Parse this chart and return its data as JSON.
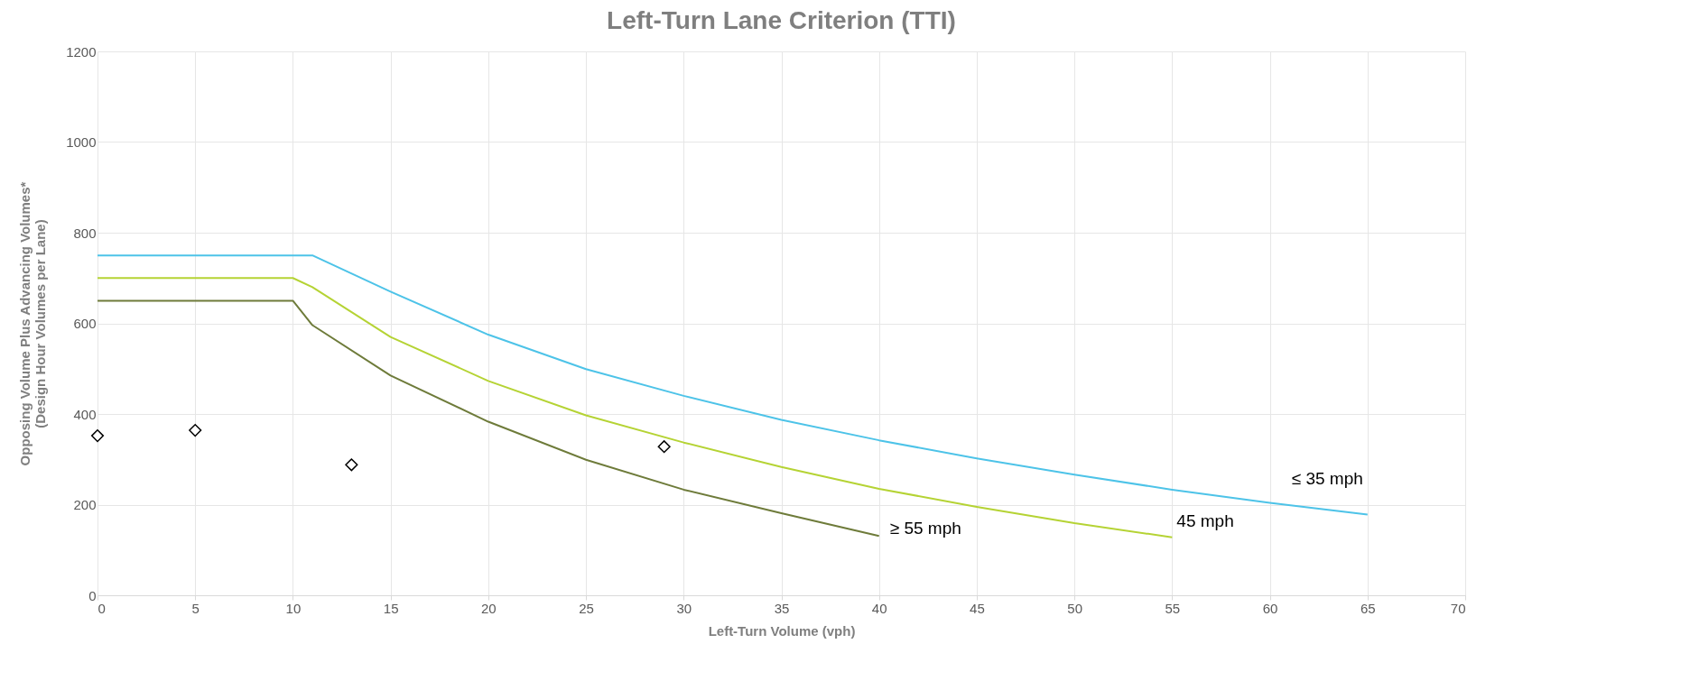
{
  "chart_data": {
    "type": "line",
    "title": "Left-Turn Lane Criterion (TTI)",
    "xlabel": "Left-Turn Volume (vph)",
    "ylabel": "Opposing Volume Plus Advancing Volumes*\n(Design Hour Volumes per Lane)",
    "xlim": [
      0,
      70
    ],
    "xticks": [
      0,
      5,
      10,
      15,
      20,
      25,
      30,
      35,
      40,
      45,
      50,
      55,
      60,
      65,
      70
    ],
    "ylim": [
      0,
      1200
    ],
    "yticks": [
      0,
      200,
      400,
      600,
      800,
      1000,
      1200
    ],
    "grid": true,
    "marker": "none",
    "line_style": "solid",
    "series": [
      {
        "name": "≤ 35 mph",
        "color": "#4dc3e8",
        "x": [
          0,
          11,
          15,
          20,
          25,
          30,
          35,
          40,
          45,
          50,
          55,
          60,
          65
        ],
        "values": [
          750,
          750,
          670,
          575,
          499,
          440,
          387,
          342,
          302,
          266,
          233,
          204,
          178
        ]
      },
      {
        "name": "45 mph",
        "color": "#b5d334",
        "x": [
          0,
          10,
          11,
          15,
          20,
          25,
          30,
          35,
          40,
          45,
          50,
          55
        ],
        "values": [
          700,
          700,
          680,
          570,
          473,
          397,
          337,
          283,
          235,
          195,
          159,
          128
        ]
      },
      {
        "name": "≥ 55 mph",
        "color": "#6e7b3a",
        "x": [
          0,
          10,
          11,
          15,
          20,
          25,
          30,
          35,
          40
        ],
        "values": [
          650,
          650,
          596,
          485,
          383,
          299,
          233,
          181,
          131
        ]
      },
      {
        "type": "scatter",
        "marker": "diamond",
        "color": "#000000",
        "x": [
          0,
          5,
          13,
          29
        ],
        "values": [
          352,
          364,
          288,
          328
        ]
      }
    ]
  }
}
